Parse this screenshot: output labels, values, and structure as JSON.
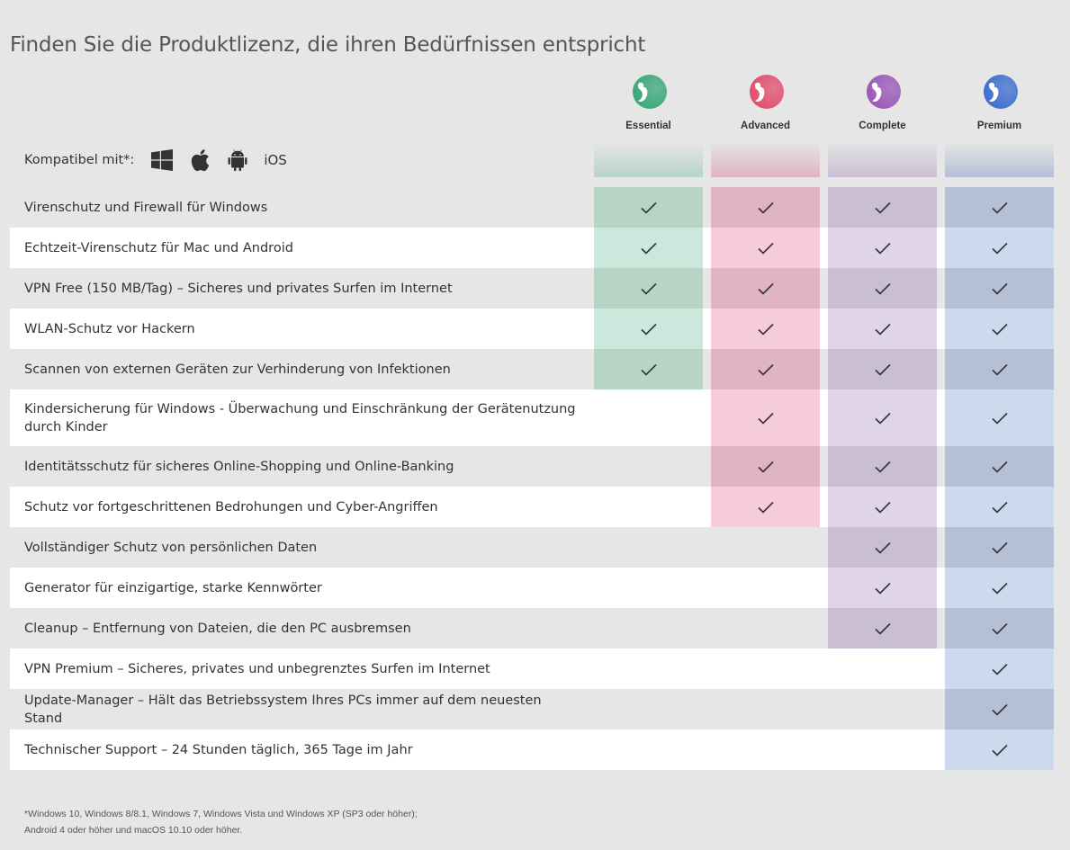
{
  "page_title": "Finden Sie die Produktlizenz, die ihren Bedürfnissen entspricht",
  "compat": {
    "label": "Kompatibel mit*:",
    "icons": [
      "windows-icon",
      "apple-icon",
      "android-icon"
    ],
    "ios_label": "iOS"
  },
  "tiers": [
    {
      "name": "Essential",
      "color": "#3aa87a"
    },
    {
      "name": "Advanced",
      "color": "#e0506e"
    },
    {
      "name": "Complete",
      "color": "#9a59b8"
    },
    {
      "name": "Premium",
      "color": "#3f6fcf"
    }
  ],
  "features": [
    {
      "label": "Virenschutz und Firewall für Windows",
      "tiers": [
        true,
        true,
        true,
        true
      ]
    },
    {
      "label": "Echtzeit-Virenschutz für Mac und Android",
      "tiers": [
        true,
        true,
        true,
        true
      ]
    },
    {
      "label": "VPN Free (150 MB/Tag) – Sicheres und privates Surfen im Internet",
      "tiers": [
        true,
        true,
        true,
        true
      ]
    },
    {
      "label": "WLAN-Schutz vor Hackern",
      "tiers": [
        true,
        true,
        true,
        true
      ]
    },
    {
      "label": "Scannen von externen Geräten zur Verhinderung von Infektionen",
      "tiers": [
        true,
        true,
        true,
        true
      ]
    },
    {
      "label": "Kindersicherung für Windows - Überwachung und Einschränkung der Gerätenutzung durch Kinder",
      "tiers": [
        false,
        true,
        true,
        true
      ]
    },
    {
      "label": "Identitätsschutz für sicheres Online-Shopping und Online-Banking",
      "tiers": [
        false,
        true,
        true,
        true
      ]
    },
    {
      "label": "Schutz vor fortgeschrittenen Bedrohungen und Cyber-Angriffen",
      "tiers": [
        false,
        true,
        true,
        true
      ]
    },
    {
      "label": "Vollständiger Schutz von persönlichen Daten",
      "tiers": [
        false,
        false,
        true,
        true
      ]
    },
    {
      "label": "Generator für einzigartige, starke Kennwörter",
      "tiers": [
        false,
        false,
        true,
        true
      ]
    },
    {
      "label": "Cleanup – Entfernung von Dateien, die den PC ausbremsen",
      "tiers": [
        false,
        false,
        true,
        true
      ]
    },
    {
      "label": "VPN Premium – Sicheres, privates und unbegrenztes Surfen im Internet",
      "tiers": [
        false,
        false,
        false,
        true
      ]
    },
    {
      "label": "Update-Manager – Hält das Betriebssystem Ihres PCs immer auf dem neuesten Stand",
      "tiers": [
        false,
        false,
        false,
        true
      ]
    },
    {
      "label": "Technischer Support – 24 Stunden täglich, 365 Tage im Jahr",
      "tiers": [
        false,
        false,
        false,
        true
      ]
    }
  ],
  "footnote": {
    "line1": "*Windows 10, Windows 8/8.1, Windows 7, Windows Vista und Windows XP (SP3 oder höher);",
    "line2": "Android 4 oder höher und macOS 10.10 oder höher."
  }
}
